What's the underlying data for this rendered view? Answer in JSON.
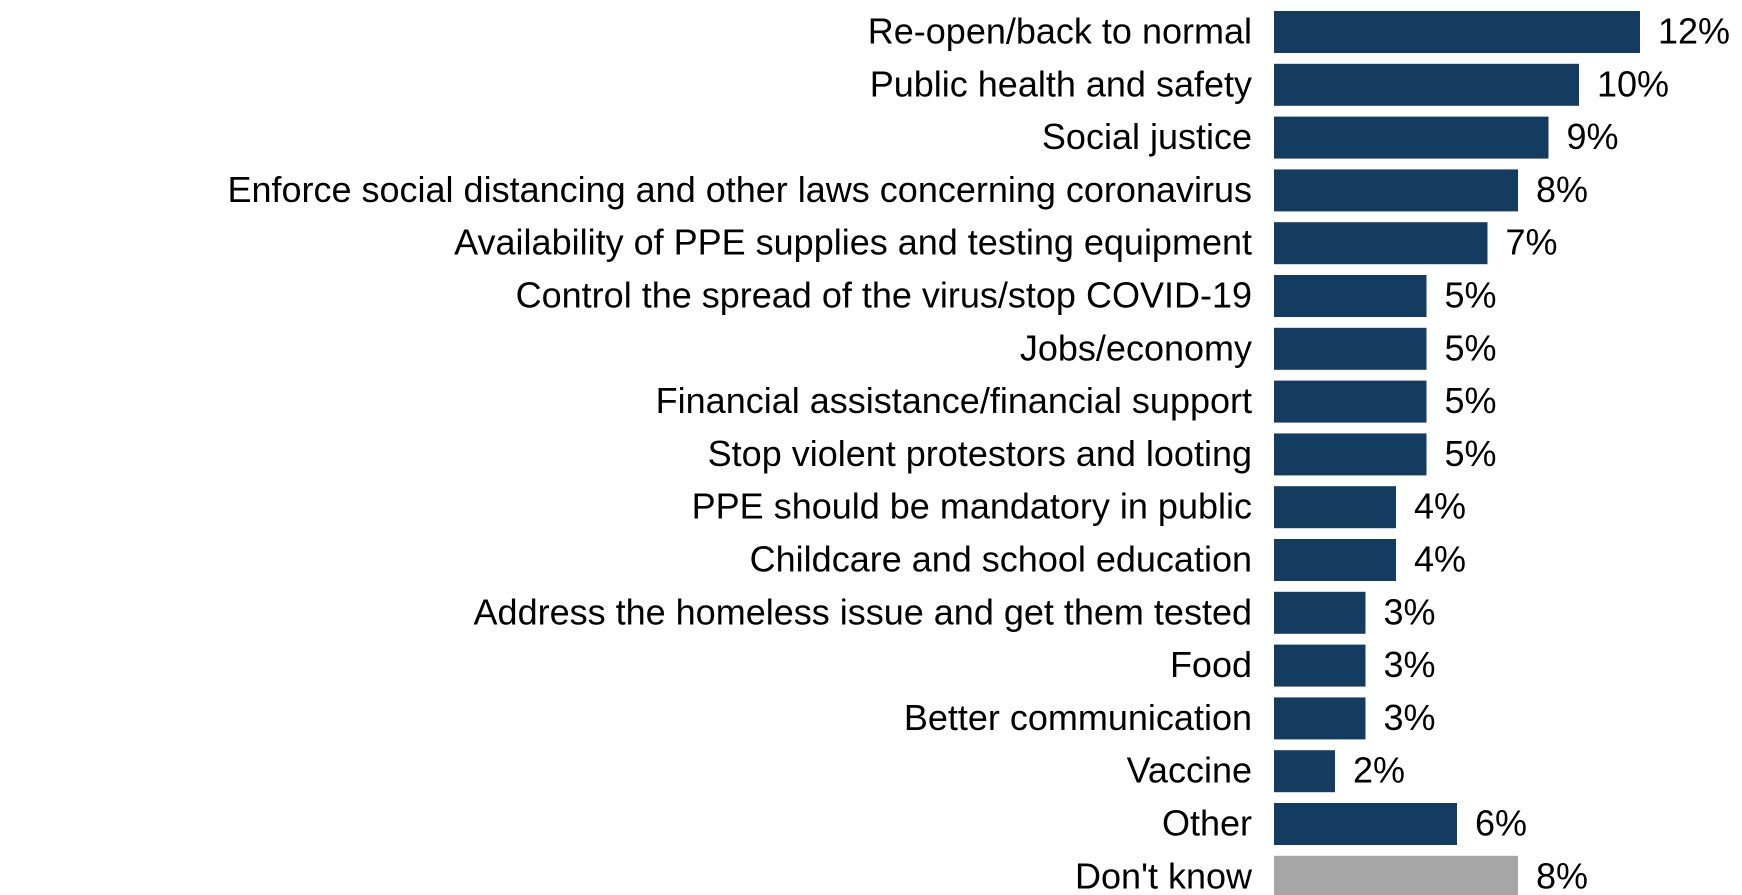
{
  "chart_data": {
    "type": "bar",
    "orientation": "horizontal",
    "categories": [
      "Re-open/back to normal",
      "Public health and safety",
      "Social justice",
      "Enforce social distancing and other laws concerning coronavirus",
      "Availability of PPE supplies and testing equipment",
      "Control the spread of the virus/stop COVID-19",
      "Jobs/economy",
      "Financial assistance/financial support",
      "Stop violent protestors and looting",
      "PPE should be mandatory in public",
      "Childcare and school education",
      "Address the homeless issue and get them tested",
      "Food",
      "Better communication",
      "Vaccine",
      "Other",
      "Don't know"
    ],
    "values": [
      12,
      10,
      9,
      8,
      7,
      5,
      5,
      5,
      5,
      4,
      4,
      3,
      3,
      3,
      2,
      6,
      8
    ],
    "value_labels": [
      "12%",
      "10%",
      "9%",
      "8%",
      "7%",
      "5%",
      "5%",
      "5%",
      "5%",
      "4%",
      "4%",
      "3%",
      "3%",
      "3%",
      "2%",
      "6%",
      "8%"
    ],
    "colors": [
      "#133c60",
      "#133c60",
      "#133c60",
      "#133c60",
      "#133c60",
      "#133c60",
      "#133c60",
      "#133c60",
      "#133c60",
      "#133c60",
      "#133c60",
      "#133c60",
      "#133c60",
      "#133c60",
      "#133c60",
      "#133c60",
      "#a6a6a6"
    ]
  }
}
